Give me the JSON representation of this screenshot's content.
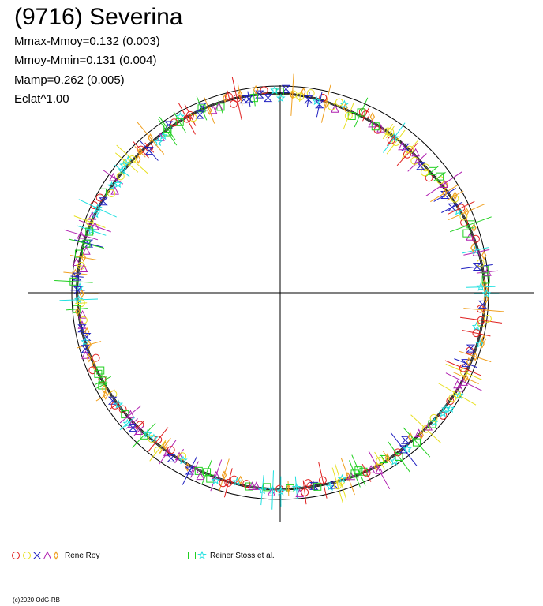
{
  "chart_data": {
    "type": "scatter",
    "title": "(9716) Severina",
    "stats": [
      "Mmax-Mmoy=0.132 (0.003)",
      "Mmoy-Mmin=0.131 (0.004)",
      "Mamp=0.262 (0.005)",
      "Eclat^1.00"
    ],
    "series": [
      {
        "name": "Rene Roy",
        "markers": [
          "circle",
          "circle",
          "hourglass",
          "triangle",
          "diamond"
        ],
        "colors": [
          "#e02020",
          "#e8e020",
          "#2020c0",
          "#b020b0",
          "#f0a020"
        ]
      },
      {
        "name": "Reiner Stoss et al.",
        "markers": [
          "square",
          "star"
        ],
        "colors": [
          "#20d020",
          "#20e0e0"
        ]
      }
    ],
    "loop_points": [
      {
        "a": 90,
        "r": 0.965
      },
      {
        "a": 80,
        "r": 0.955
      },
      {
        "a": 70,
        "r": 0.94
      },
      {
        "a": 60,
        "r": 0.935
      },
      {
        "a": 50,
        "r": 0.93
      },
      {
        "a": 40,
        "r": 0.925
      },
      {
        "a": 30,
        "r": 0.94
      },
      {
        "a": 20,
        "r": 0.96
      },
      {
        "a": 10,
        "r": 0.975
      },
      {
        "a": 0,
        "r": 0.985
      },
      {
        "a": -10,
        "r": 0.98
      },
      {
        "a": -20,
        "r": 0.975
      },
      {
        "a": -30,
        "r": 0.97
      },
      {
        "a": -40,
        "r": 0.96
      },
      {
        "a": -50,
        "r": 0.955
      },
      {
        "a": -60,
        "r": 0.96
      },
      {
        "a": -70,
        "r": 0.955
      },
      {
        "a": -80,
        "r": 0.95
      },
      {
        "a": -90,
        "r": 0.95
      },
      {
        "a": -100,
        "r": 0.95
      },
      {
        "a": -110,
        "r": 0.945
      },
      {
        "a": -120,
        "r": 0.94
      },
      {
        "a": -130,
        "r": 0.94
      },
      {
        "a": -140,
        "r": 0.945
      },
      {
        "a": -150,
        "r": 0.95
      },
      {
        "a": -160,
        "r": 0.96
      },
      {
        "a": -170,
        "r": 0.97
      },
      {
        "a": 180,
        "r": 0.975
      },
      {
        "a": 170,
        "r": 0.975
      },
      {
        "a": 160,
        "r": 0.97
      },
      {
        "a": 150,
        "r": 0.96
      },
      {
        "a": 140,
        "r": 0.955
      },
      {
        "a": 130,
        "r": 0.955
      },
      {
        "a": 120,
        "r": 0.96
      },
      {
        "a": 110,
        "r": 0.965
      },
      {
        "a": 100,
        "r": 0.965
      }
    ]
  },
  "copyright": "(c)2020 OdG-RB"
}
